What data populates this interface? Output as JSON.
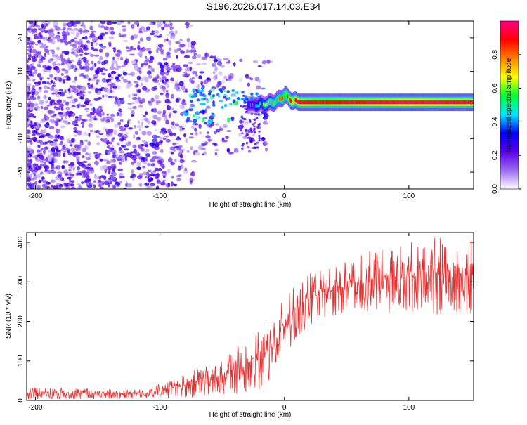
{
  "figure_title": "S196.2026.017.14.03.E34",
  "chart_data": [
    {
      "type": "heatmap",
      "title": "",
      "xlabel": "Height of straight line (km)",
      "ylabel": "Frequency (Hz)",
      "xlim": [
        -207,
        152
      ],
      "ylim": [
        -25,
        25
      ],
      "xticks": [
        -200,
        -100,
        0,
        100
      ],
      "xtick_labels": [
        "-200",
        "-100",
        "0",
        "100"
      ],
      "yticks": [
        -20,
        -10,
        0,
        10,
        20
      ],
      "ytick_labels": [
        "-20",
        "-10",
        "0",
        "10",
        "20"
      ],
      "colorbar": {
        "label": "Normalized spectral amplitude",
        "range": [
          0.0,
          1.0
        ],
        "ticks": [
          0.0,
          0.2,
          0.4,
          0.6,
          0.8
        ],
        "tick_labels": [
          "0.0",
          "0.2",
          "0.4",
          "0.6",
          "0.8"
        ],
        "colors": [
          "#ffffff",
          "#9b6bf0",
          "#5a00e6",
          "#0000ff",
          "#00e6ff",
          "#00ff33",
          "#ffff00",
          "#ff8000",
          "#ff0000",
          "#ff0080"
        ]
      },
      "ridge": {
        "x": [
          -25,
          -15,
          -8,
          -3,
          0,
          3,
          7,
          12,
          30,
          60,
          100,
          152
        ],
        "y": [
          0.0,
          0.3,
          1.0,
          2.0,
          3.0,
          2.0,
          1.2,
          0.8,
          0.8,
          0.8,
          0.8,
          0.8
        ],
        "amplitude": [
          0.35,
          0.6,
          0.7,
          0.75,
          0.8,
          0.85,
          0.9,
          0.9,
          0.85,
          0.9,
          0.95,
          0.9
        ]
      },
      "noise_region": {
        "x_range": [
          -207,
          -20
        ],
        "y_range": [
          -25,
          25
        ],
        "amplitude_range": [
          0.05,
          0.3
        ]
      }
    },
    {
      "type": "line",
      "title": "",
      "xlabel": "Height of straight line (km)",
      "ylabel": "SNR (10 * v/v)",
      "xlim": [
        -207,
        152
      ],
      "ylim": [
        0,
        425
      ],
      "xticks": [
        -200,
        -100,
        0,
        100
      ],
      "xtick_labels": [
        "-200",
        "-100",
        "0",
        "100"
      ],
      "yticks": [
        0,
        100,
        200,
        300,
        400
      ],
      "ytick_labels": [
        "0",
        "100",
        "200",
        "300",
        "400"
      ],
      "series": [
        {
          "name": "SNR",
          "color": "#e83030",
          "envelope_x": [
            -207,
            -150,
            -110,
            -90,
            -70,
            -50,
            -30,
            -20,
            -10,
            0,
            10,
            20,
            30,
            50,
            70,
            100,
            130,
            152
          ],
          "envelope_min": [
            3,
            3,
            5,
            5,
            8,
            12,
            20,
            25,
            60,
            110,
            150,
            190,
            210,
            220,
            220,
            220,
            215,
            210
          ],
          "envelope_max": [
            35,
            30,
            30,
            55,
            80,
            110,
            160,
            175,
            210,
            260,
            300,
            320,
            330,
            350,
            380,
            400,
            420,
            420
          ]
        }
      ]
    }
  ]
}
